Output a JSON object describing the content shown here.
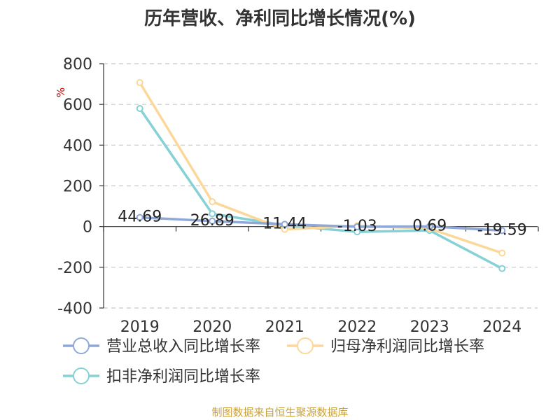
{
  "chart_data": {
    "type": "line",
    "title": "历年营收、净利同比增长情况(%)",
    "ylabel": "%",
    "ylim": [
      -400,
      800
    ],
    "yticks": [
      800,
      600,
      400,
      200,
      0,
      -200,
      -400
    ],
    "categories": [
      "2019",
      "2020",
      "2021",
      "2022",
      "2023",
      "2024"
    ],
    "grid": true,
    "legend_position": "bottom",
    "series": [
      {
        "name": "营业总收入同比增长率",
        "color": "#8fa8d8",
        "values": [
          44.69,
          26.89,
          11.44,
          -1.03,
          0.69,
          -19.59
        ],
        "labels": [
          "44.69",
          "26.89",
          "11.44",
          "-1.03",
          "0.69",
          "-19.59"
        ]
      },
      {
        "name": "归母净利润同比增长率",
        "color": "#fbd89a",
        "values": [
          707,
          122,
          -14,
          4,
          -10,
          -130
        ]
      },
      {
        "name": "扣非净利润同比增长率",
        "color": "#86d1d6",
        "values": [
          580,
          63,
          6,
          -26,
          -19,
          -206
        ]
      }
    ]
  },
  "source_note": "制图数据来自恒生聚源数据库"
}
